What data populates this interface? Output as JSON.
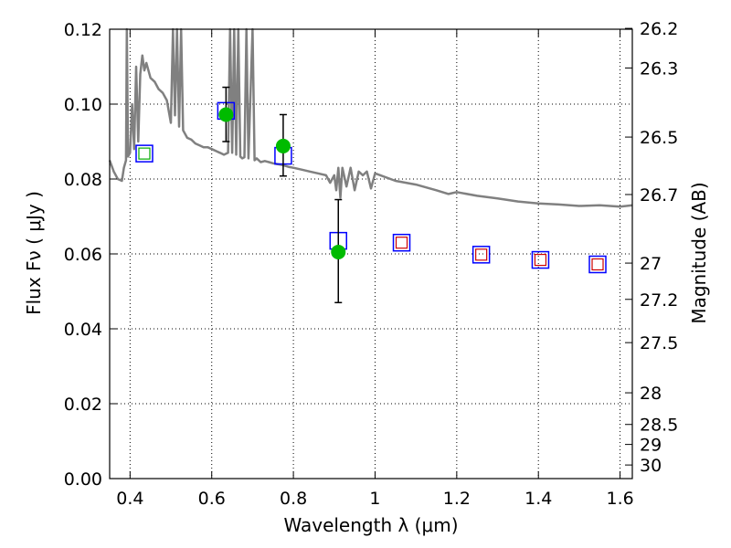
{
  "chart_data": {
    "type": "scatter",
    "xlabel": "Wavelength  λ (μm)",
    "ylabel": "Flux  Fν  ( μJy )",
    "ylabel_right": "Magnitude (AB)",
    "xlim": [
      0.35,
      1.63
    ],
    "ylim": [
      0.0,
      0.12
    ],
    "grid": true,
    "x_ticks": [
      0.4,
      0.6,
      0.8,
      1.0,
      1.2,
      1.4,
      1.6
    ],
    "x_tick_labels": [
      "0.4",
      "0.6",
      "0.8",
      "1",
      "1.2",
      "1.4",
      "1.6"
    ],
    "y_ticks": [
      0.0,
      0.02,
      0.04,
      0.06,
      0.08,
      0.1,
      0.12
    ],
    "y_tick_labels": [
      "0.00",
      "0.02",
      "0.04",
      "0.06",
      "0.08",
      "0.10",
      "0.12"
    ],
    "right_ticks": [
      {
        "mag": 26.2,
        "label": "26.2"
      },
      {
        "mag": 26.3,
        "label": "26.3"
      },
      {
        "mag": 26.5,
        "label": "26.5"
      },
      {
        "mag": 26.7,
        "label": "26.7"
      },
      {
        "mag": 27.0,
        "label": "27"
      },
      {
        "mag": 27.2,
        "label": "27.2"
      },
      {
        "mag": 27.5,
        "label": "27.5"
      },
      {
        "mag": 28.0,
        "label": "28"
      },
      {
        "mag": 28.5,
        "label": "28.5"
      },
      {
        "mag": 29.0,
        "label": "29"
      },
      {
        "mag": 30.0,
        "label": "30"
      }
    ],
    "series": [
      {
        "kind": "line",
        "color": "#808080",
        "x": [
          0.35,
          0.36,
          0.37,
          0.38,
          0.385,
          0.39,
          0.392,
          0.395,
          0.4,
          0.405,
          0.41,
          0.415,
          0.42,
          0.425,
          0.43,
          0.435,
          0.44,
          0.45,
          0.46,
          0.47,
          0.48,
          0.49,
          0.5,
          0.505,
          0.51,
          0.515,
          0.52,
          0.525,
          0.53,
          0.54,
          0.55,
          0.56,
          0.57,
          0.58,
          0.59,
          0.6,
          0.61,
          0.62,
          0.63,
          0.64,
          0.645,
          0.65,
          0.655,
          0.66,
          0.665,
          0.67,
          0.675,
          0.68,
          0.685,
          0.69,
          0.7,
          0.705,
          0.71,
          0.72,
          0.73,
          0.74,
          0.75,
          0.76,
          0.77,
          0.78,
          0.79,
          0.8,
          0.82,
          0.84,
          0.86,
          0.88,
          0.89,
          0.9,
          0.905,
          0.91,
          0.915,
          0.92,
          0.93,
          0.94,
          0.95,
          0.96,
          0.97,
          0.98,
          0.99,
          1.0,
          1.05,
          1.1,
          1.15,
          1.18,
          1.2,
          1.25,
          1.3,
          1.35,
          1.4,
          1.45,
          1.5,
          1.55,
          1.6,
          1.63
        ],
        "y": [
          0.085,
          0.082,
          0.08,
          0.0795,
          0.083,
          0.085,
          0.12,
          0.086,
          0.087,
          0.1,
          0.088,
          0.11,
          0.09,
          0.108,
          0.113,
          0.109,
          0.111,
          0.107,
          0.106,
          0.104,
          0.103,
          0.101,
          0.095,
          0.12,
          0.097,
          0.12,
          0.094,
          0.12,
          0.093,
          0.091,
          0.0905,
          0.0895,
          0.089,
          0.0885,
          0.0885,
          0.088,
          0.0875,
          0.087,
          0.0865,
          0.087,
          0.12,
          0.087,
          0.12,
          0.0865,
          0.12,
          0.086,
          0.0855,
          0.0858,
          0.12,
          0.0855,
          0.12,
          0.085,
          0.0855,
          0.0845,
          0.0848,
          0.0845,
          0.0842,
          0.084,
          0.0838,
          0.0835,
          0.0832,
          0.083,
          0.0825,
          0.082,
          0.0815,
          0.081,
          0.079,
          0.081,
          0.077,
          0.083,
          0.075,
          0.083,
          0.078,
          0.083,
          0.077,
          0.082,
          0.081,
          0.082,
          0.0775,
          0.0815,
          0.0795,
          0.0785,
          0.077,
          0.076,
          0.0765,
          0.0755,
          0.0748,
          0.074,
          0.0735,
          0.0732,
          0.0728,
          0.073,
          0.0726,
          0.073
        ]
      },
      {
        "kind": "marker",
        "marker": "square",
        "edgecolor": "#0000ff",
        "x": [
          0.435,
          0.635,
          0.775,
          0.91
        ],
        "y": [
          0.0868,
          0.0982,
          0.0862,
          0.0635
        ]
      },
      {
        "kind": "marker",
        "marker": "square",
        "edgecolor": "#0000ff",
        "x": [
          1.065,
          1.26,
          1.405,
          1.545
        ],
        "y": [
          0.063,
          0.0598,
          0.0584,
          0.0572
        ]
      },
      {
        "kind": "marker",
        "marker": "small-square",
        "edgecolor": "#00aa00",
        "x": [
          0.435
        ],
        "y": [
          0.0868
        ]
      },
      {
        "kind": "marker",
        "marker": "small-square",
        "edgecolor": "#cc0000",
        "x": [
          1.065,
          1.26,
          1.405,
          1.545
        ],
        "y": [
          0.063,
          0.0598,
          0.0584,
          0.0572
        ]
      },
      {
        "kind": "marker",
        "marker": "circle",
        "color": "#00bb00",
        "x": [
          0.635,
          0.775,
          0.91
        ],
        "y": [
          0.0972,
          0.0888,
          0.0605
        ],
        "yerr_low": [
          0.09,
          0.0808,
          0.047
        ],
        "yerr_high": [
          0.1045,
          0.0972,
          0.0745
        ]
      }
    ]
  }
}
